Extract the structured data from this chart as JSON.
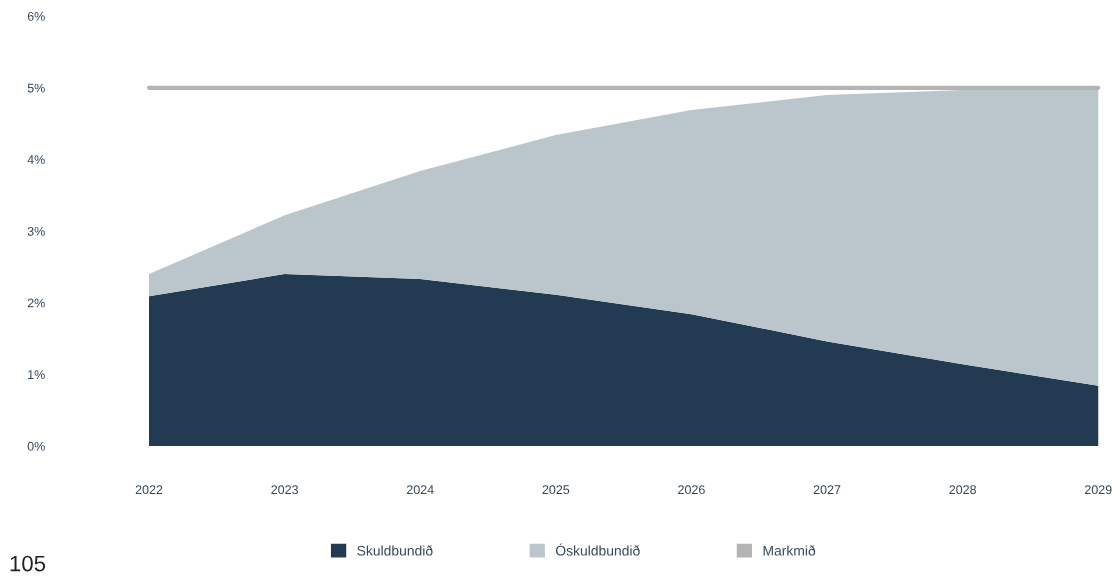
{
  "chart_data": {
    "type": "area",
    "stacked": true,
    "categories": [
      "2022",
      "2023",
      "2024",
      "2025",
      "2026",
      "2027",
      "2028",
      "2029"
    ],
    "series": [
      {
        "name": "Skuldbundið",
        "color": "#223a52",
        "values": [
          2.09,
          2.4,
          2.33,
          2.11,
          1.84,
          1.46,
          1.14,
          0.84
        ]
      },
      {
        "name": "Óskuldbundið",
        "color": "#bac6cc",
        "values": [
          0.31,
          0.82,
          1.51,
          2.23,
          2.85,
          3.44,
          3.83,
          4.14
        ]
      }
    ],
    "ref_lines": [
      {
        "axis": "y",
        "value": 5,
        "label": "Markmið",
        "color": "#b4b4b4"
      }
    ],
    "ylim": [
      0,
      6
    ],
    "yticks": [
      {
        "value": 0,
        "label": "0%"
      },
      {
        "value": 1,
        "label": "1%"
      },
      {
        "value": 2,
        "label": "2%"
      },
      {
        "value": 3,
        "label": "3%"
      },
      {
        "value": 4,
        "label": "4%"
      },
      {
        "value": 5,
        "label": "5%"
      },
      {
        "value": 6,
        "label": "6%"
      }
    ],
    "grid": false,
    "legend": "bottom",
    "annotations": [
      "105"
    ]
  }
}
